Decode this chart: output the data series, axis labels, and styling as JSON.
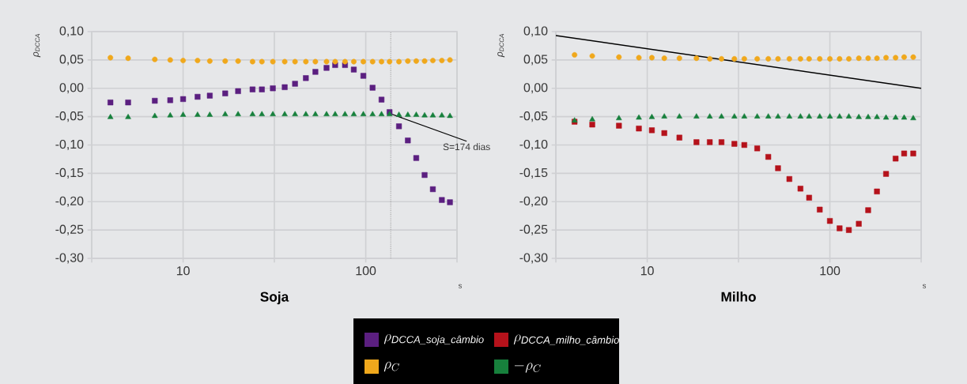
{
  "chart_data": [
    {
      "type": "scatter",
      "title": "Soja",
      "xlabel": "s",
      "ylabel": "ρ$_{DCCA}$",
      "log": "x",
      "grid": true,
      "legend": "bottom",
      "xlim": [
        3.16,
        316
      ],
      "ylim": [
        -0.3,
        0.1
      ],
      "xticks": [
        {
          "value": 3.16,
          "label": null
        },
        10,
        {
          "value": 31.6,
          "label": null
        },
        100,
        {
          "value": 316,
          "label": null
        }
      ],
      "yticks": [
        {
          "value": -0.3,
          "label": "-0,30"
        },
        {
          "value": -0.25,
          "label": "-0,25"
        },
        {
          "value": -0.2,
          "label": "-0,20"
        },
        {
          "value": -0.15,
          "label": "-0,15"
        },
        {
          "value": -0.1,
          "label": "-0,10"
        },
        {
          "value": -0.05,
          "label": "-0,05"
        },
        {
          "value": 0,
          "label": "0,00"
        },
        {
          "value": 0.05,
          "label": "0,05"
        },
        {
          "value": 0.1,
          "label": "0,10"
        }
      ],
      "x": [
        4,
        5,
        7,
        8.5,
        10,
        12,
        14,
        17,
        20,
        24,
        27,
        31,
        36,
        41,
        47,
        53,
        61,
        68,
        77,
        86,
        97,
        109,
        122,
        135,
        152,
        170,
        189,
        210,
        233,
        261,
        289
      ],
      "series": [
        {
          "name": "\\rho_{\\text{\\itshape DCCA\\_soja\\_câmbio}}",
          "color": "#5b1f80",
          "marker": "square",
          "values": [
            -0.025,
            -0.025,
            -0.022,
            -0.021,
            -0.019,
            -0.015,
            -0.013,
            -0.009,
            -0.005,
            -0.002,
            -0.002,
            0.0,
            0.002,
            0.008,
            0.018,
            0.029,
            0.036,
            0.041,
            0.041,
            0.033,
            0.022,
            0.001,
            -0.02,
            -0.042,
            -0.067,
            -0.092,
            -0.123,
            -0.153,
            -0.178,
            -0.197,
            -0.201
          ]
        },
        {
          "name": "\\rho_{C}",
          "color": "#f0a81c",
          "marker": "circle",
          "values": [
            0.054,
            0.053,
            0.051,
            0.05,
            0.049,
            0.049,
            0.048,
            0.048,
            0.048,
            0.047,
            0.047,
            0.047,
            0.047,
            0.047,
            0.047,
            0.047,
            0.047,
            0.047,
            0.047,
            0.047,
            0.047,
            0.047,
            0.047,
            0.047,
            0.047,
            0.048,
            0.048,
            0.048,
            0.049,
            0.049,
            0.05
          ]
        },
        {
          "name": "-\\rho_{C}",
          "color": "#17803c",
          "marker": "triangle",
          "values": [
            -0.051,
            -0.051,
            -0.049,
            -0.048,
            -0.047,
            -0.047,
            -0.047,
            -0.046,
            -0.046,
            -0.046,
            -0.046,
            -0.046,
            -0.046,
            -0.046,
            -0.046,
            -0.046,
            -0.046,
            -0.046,
            -0.046,
            -0.046,
            -0.046,
            -0.046,
            -0.046,
            -0.046,
            -0.047,
            -0.047,
            -0.047,
            -0.048,
            -0.048,
            -0.048,
            -0.049
          ]
        }
      ],
      "ref_lines": [
        {
          "axis": "x",
          "value": 137,
          "line_style": "dotted",
          "color": "#a0a0a0"
        }
      ],
      "annotations": [
        {
          "text": "S=174 dias",
          "x": 137,
          "y": -0.045
        }
      ]
    },
    {
      "type": "scatter",
      "title": "Milho",
      "xlabel": "s",
      "ylabel": "ρ$_{DCCA}$",
      "log": "x",
      "grid": true,
      "xlim": [
        3.16,
        316
      ],
      "ylim": [
        -0.3,
        0.1
      ],
      "xticks": [
        {
          "value": 3.16,
          "label": null
        },
        10,
        {
          "value": 31.6,
          "label": null
        },
        100,
        {
          "value": 316,
          "label": null
        }
      ],
      "yticks": [
        {
          "value": -0.3,
          "label": "-0,30"
        },
        {
          "value": -0.25,
          "label": "-0,25"
        },
        {
          "value": -0.2,
          "label": "-0,20"
        },
        {
          "value": -0.15,
          "label": "-0,15"
        },
        {
          "value": -0.1,
          "label": "-0,10"
        },
        {
          "value": -0.05,
          "label": "-0,05"
        },
        {
          "value": 0,
          "label": "0,00"
        },
        {
          "value": 0.05,
          "label": "0,05"
        },
        {
          "value": 0.1,
          "label": "0,10"
        }
      ],
      "x": [
        4,
        5,
        7,
        9,
        10.6,
        12.4,
        15,
        18.6,
        22,
        25.5,
        30,
        34,
        40,
        46,
        52,
        60,
        69,
        77,
        88,
        100,
        113,
        127,
        144,
        162,
        181,
        203,
        229,
        255,
        286
      ],
      "series": [
        {
          "name": "\\rho_{\\text{\\itshape DCCA\\_milho\\_câmbio}}",
          "color": "#b5121b",
          "marker": "square",
          "values": [
            -0.059,
            -0.064,
            -0.066,
            -0.071,
            -0.074,
            -0.079,
            -0.087,
            -0.095,
            -0.095,
            -0.095,
            -0.098,
            -0.1,
            -0.106,
            -0.121,
            -0.141,
            -0.16,
            -0.177,
            -0.193,
            -0.214,
            -0.234,
            -0.247,
            -0.25,
            -0.239,
            -0.215,
            -0.182,
            -0.151,
            -0.124,
            -0.115,
            -0.115
          ]
        },
        {
          "color": "#f0a81c",
          "marker": "circle",
          "values": [
            0.059,
            0.057,
            0.055,
            0.054,
            0.054,
            0.053,
            0.053,
            0.053,
            0.052,
            0.052,
            0.052,
            0.052,
            0.052,
            0.052,
            0.052,
            0.052,
            0.052,
            0.052,
            0.052,
            0.052,
            0.052,
            0.052,
            0.053,
            0.053,
            0.053,
            0.054,
            0.054,
            0.055,
            0.055
          ]
        },
        {
          "color": "#17803c",
          "marker": "triangle",
          "values": [
            -0.057,
            -0.055,
            -0.053,
            -0.052,
            -0.051,
            -0.05,
            -0.05,
            -0.05,
            -0.05,
            -0.05,
            -0.05,
            -0.05,
            -0.05,
            -0.05,
            -0.05,
            -0.05,
            -0.05,
            -0.05,
            -0.05,
            -0.05,
            -0.05,
            -0.05,
            -0.051,
            -0.051,
            -0.051,
            -0.052,
            -0.052,
            -0.052,
            -0.053
          ]
        },
        {
          "type": "line",
          "color": "#000000",
          "line_style": "solid",
          "x": [
            3.16,
            316
          ],
          "values": [
            0.093,
            0.0
          ]
        }
      ]
    }
  ]
}
